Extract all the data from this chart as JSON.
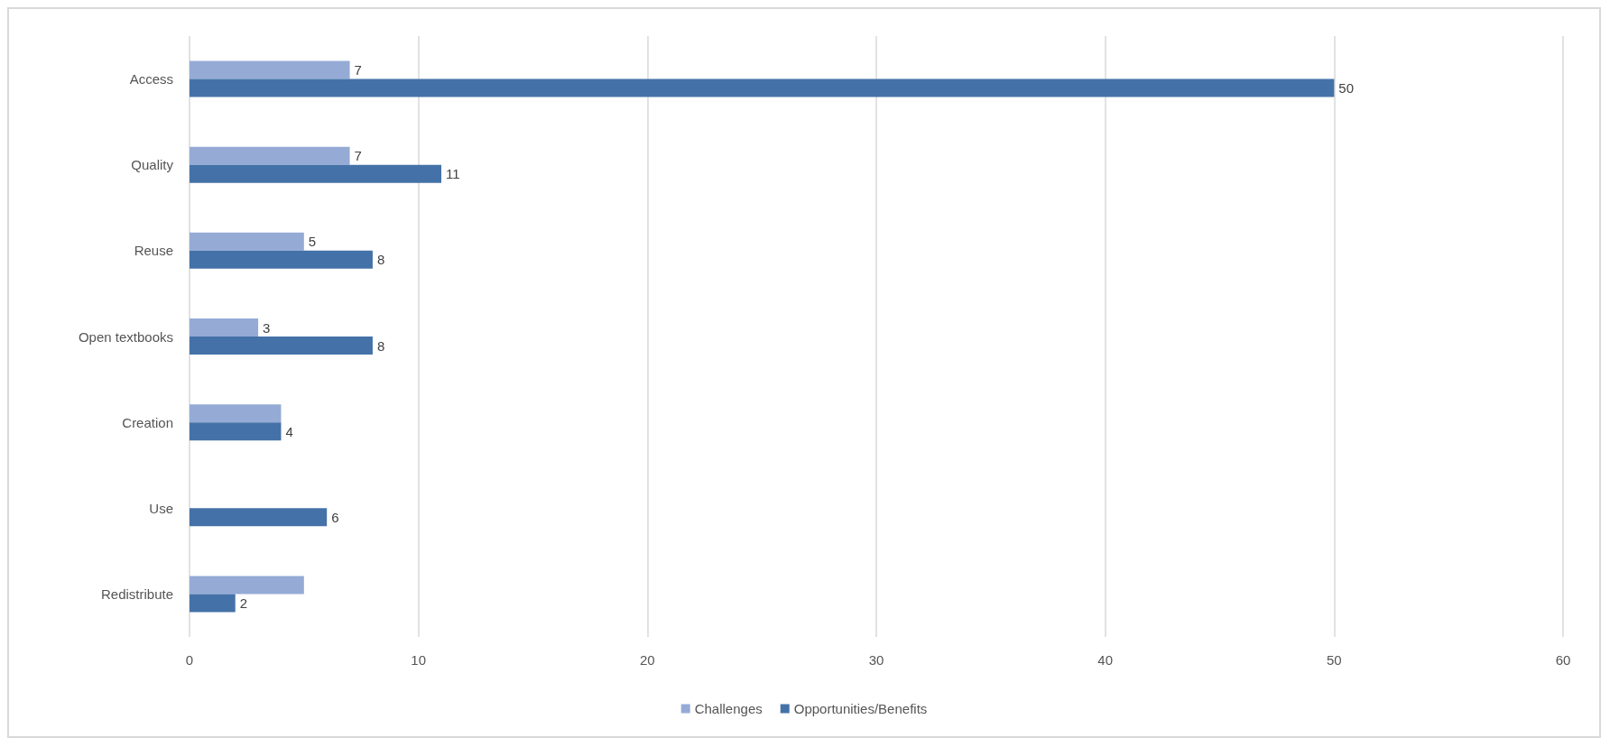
{
  "chart_data": {
    "type": "bar",
    "orientation": "horizontal",
    "categories": [
      "Access",
      "Quality",
      "Reuse",
      "Open textbooks",
      "Creation",
      "Use",
      "Redistribute"
    ],
    "series": [
      {
        "name": "Challenges",
        "color": "#95abd5",
        "values": [
          7,
          7,
          5,
          3,
          4,
          null,
          5
        ],
        "value_labels": [
          "7",
          "7",
          "5",
          "3",
          null,
          null,
          null
        ]
      },
      {
        "name": "Opportunities/Benefits",
        "color": "#4472a8",
        "values": [
          50,
          11,
          8,
          8,
          4,
          6,
          2
        ],
        "value_labels": [
          "50",
          "11",
          "8",
          "8",
          "4",
          "6",
          "2"
        ]
      }
    ],
    "xlim": [
      0,
      60
    ],
    "xticks": [
      0,
      10,
      20,
      30,
      40,
      50,
      60
    ],
    "grid": "x",
    "legend": "bottom"
  }
}
